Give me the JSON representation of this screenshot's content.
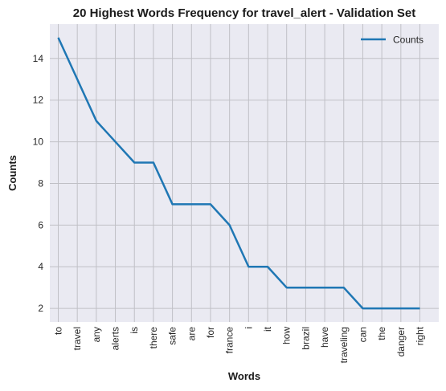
{
  "chart_data": {
    "type": "line",
    "title": "20 Highest Words Frequency for travel_alert - Validation Set",
    "xlabel": "Words",
    "ylabel": "Counts",
    "categories": [
      "to",
      "travel",
      "any",
      "alerts",
      "is",
      "there",
      "safe",
      "are",
      "for",
      "france",
      "i",
      "it",
      "how",
      "brazil",
      "have",
      "traveling",
      "can",
      "the",
      "danger",
      "right"
    ],
    "series": [
      {
        "name": "Counts",
        "values": [
          15,
          13,
          11,
          10,
          9,
          9,
          7,
          7,
          7,
          6,
          4,
          4,
          3,
          3,
          3,
          3,
          2,
          2,
          2,
          2
        ],
        "color": "#1f77b4"
      }
    ],
    "ylim": [
      1.35,
      15.65
    ],
    "yticks": [
      2,
      4,
      6,
      8,
      10,
      12,
      14
    ],
    "grid": true,
    "legend": "top-right",
    "plot_background": "#eaeaf2",
    "grid_color": "#c0c0c6"
  }
}
